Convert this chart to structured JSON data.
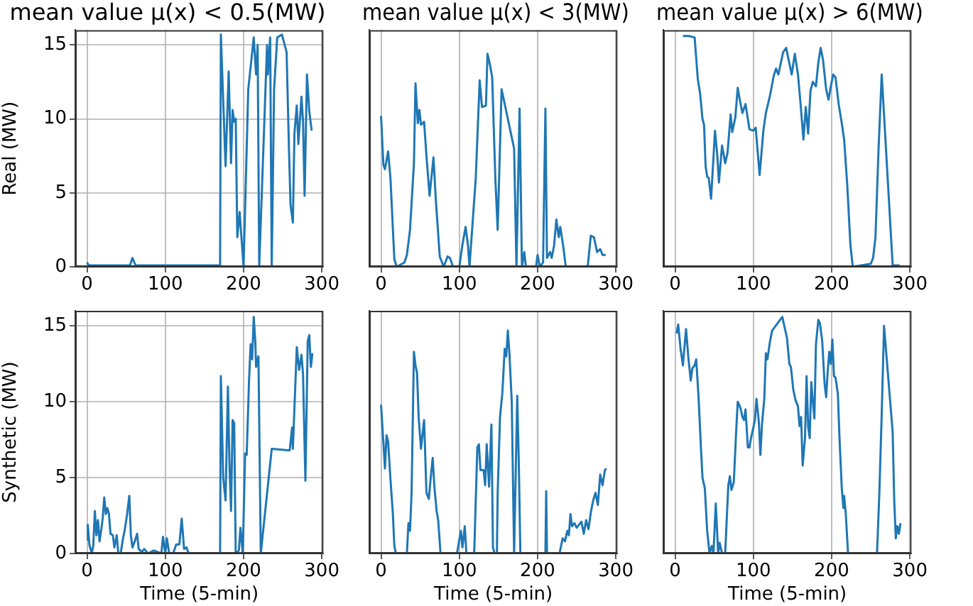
{
  "chart_data": [
    {
      "type": "line",
      "title": "mean value μ(x) < 0.5(MW)",
      "ylabel": "Real (MW)",
      "color": "#1f77b4",
      "xlim": [
        -15,
        302
      ],
      "ylim": [
        0,
        16
      ],
      "xticks": [
        0,
        100,
        200,
        300
      ],
      "yticks": [
        0,
        5,
        10,
        15
      ],
      "grid": true,
      "x": [
        0,
        2,
        20,
        40,
        55,
        58,
        62,
        100,
        165,
        170,
        171,
        177,
        181,
        184,
        186,
        188,
        190,
        192,
        195,
        200,
        206,
        208,
        213,
        216,
        218,
        220,
        223,
        228,
        230,
        231,
        234,
        236,
        239,
        243,
        249,
        255,
        258,
        260,
        263,
        265,
        268,
        270,
        274,
        276,
        278,
        281,
        284,
        287
      ],
      "values": [
        0.3,
        0.1,
        0.1,
        0.1,
        0.1,
        0.6,
        0.1,
        0.1,
        0.1,
        0.1,
        15.7,
        6.8,
        13.2,
        7,
        10.6,
        9.8,
        10,
        2,
        3.7,
        0,
        12,
        null,
        15.5,
        13,
        15,
        0,
        null,
        null,
        15,
        13,
        15.5,
        0,
        12,
        15.5,
        15.7,
        14.5,
        8,
        4.2,
        3,
        9,
        10.9,
        8.3,
        11.5,
        9.8,
        4.8,
        13,
        10.5,
        9.2
      ]
    },
    {
      "type": "line",
      "title": "mean value μ(x) < 3(MW)",
      "color": "#1f77b4",
      "xlim": [
        -15,
        302
      ],
      "ylim": [
        0,
        16
      ],
      "xticks": [
        0,
        100,
        200,
        300
      ],
      "grid": "x",
      "tick_labels": "x",
      "x": [
        0,
        3,
        5,
        9,
        12,
        17,
        20,
        30,
        33,
        37,
        42,
        44,
        47,
        49,
        51,
        55,
        58,
        62,
        67,
        70,
        75,
        80,
        85,
        88,
        92,
        100,
        104,
        108,
        111,
        113,
        121,
        126,
        129,
        134,
        136,
        139,
        142,
        146,
        149,
        154,
        158,
        165,
        170,
        173,
        177,
        180,
        183,
        185,
        198,
        200,
        203,
        207,
        210,
        212,
        216,
        218,
        221,
        224,
        227,
        229,
        233,
        236,
        264,
        268,
        272,
        276,
        280,
        283,
        287
      ],
      "values": [
        10.2,
        6.9,
        6.6,
        7.8,
        6,
        0.5,
        0,
        0.3,
        0.8,
        2.5,
        7,
        12.4,
        9.7,
        10.6,
        9.6,
        9.8,
        7.5,
        4.8,
        7.4,
        4.5,
        0.7,
        0,
        0.7,
        0.6,
        0,
        0,
        1.5,
        2.7,
        1.5,
        0,
        6,
        12.6,
        10.8,
        10.9,
        14.4,
        13.7,
        12.8,
        6,
        2.5,
        12,
        null,
        null,
        8,
        0,
        10.7,
        0,
        1,
        0,
        0,
        0.8,
        0,
        0.3,
        10.7,
        0.6,
        1,
        0.6,
        1.4,
        3.2,
        2,
        2.7,
        1.3,
        0,
        0,
        2.1,
        2,
        1,
        1.2,
        0.8,
        0.8
      ]
    },
    {
      "type": "line",
      "title": "mean value μ(x) > 6(MW)",
      "color": "#1f77b4",
      "xlim": [
        -15,
        302
      ],
      "ylim": [
        0,
        16
      ],
      "xticks": [
        0,
        100,
        200,
        300
      ],
      "grid": "x",
      "tick_labels": "x",
      "x": [
        10,
        13,
        18,
        20,
        25,
        29,
        32,
        35,
        37,
        39,
        41,
        43,
        46,
        51,
        54,
        56,
        60,
        64,
        67,
        71,
        73,
        77,
        80,
        83,
        86,
        90,
        95,
        100,
        103,
        108,
        113,
        116,
        121,
        126,
        129,
        132,
        138,
        142,
        145,
        149,
        153,
        157,
        160,
        164,
        167,
        170,
        173,
        176,
        180,
        183,
        186,
        189,
        193,
        196,
        199,
        202,
        205,
        209,
        213,
        216,
        220,
        224,
        227,
        250,
        253,
        256,
        260,
        264,
        268,
        275,
        278,
        287
      ],
      "values": [
        15.6,
        null,
        15.6,
        null,
        15.5,
        12.7,
        11.7,
        10,
        9.6,
        6.8,
        6.1,
        6,
        4.6,
        9.2,
        7.5,
        5.7,
        8.2,
        7,
        7.7,
        10.3,
        9.1,
        10.1,
        12.1,
        11.2,
        10.4,
        11,
        9.3,
        9.2,
        9.4,
        6.2,
        9.3,
        10.4,
        11.5,
        12.9,
        13.4,
        13,
        14.5,
        14.8,
        14,
        13,
        14.4,
        13,
        11.2,
        8.6,
        10.8,
        9,
        11.9,
        12.5,
        12.2,
        13.8,
        14.8,
        14,
        12,
        11.3,
        12.2,
        13,
        12.8,
        11,
        9.7,
        8.6,
        5.5,
        1.5,
        0,
        0.2,
        0.6,
        2,
        8,
        13,
        null,
        null,
        0.1,
        0.1
      ]
    },
    {
      "type": "line",
      "xlabel": "Time (5-min)",
      "ylabel": "Synthetic (MW)",
      "color": "#1f77b4",
      "xlim": [
        -15,
        302
      ],
      "ylim": [
        0,
        16
      ],
      "xticks": [
        0,
        100,
        200,
        300
      ],
      "yticks": [
        0,
        5,
        10,
        15
      ],
      "grid": true,
      "x": [
        0,
        1,
        3,
        6,
        8,
        10,
        12,
        14,
        16,
        18,
        20,
        22,
        24,
        26,
        28,
        30,
        33,
        35,
        38,
        40,
        43,
        46,
        48,
        51,
        54,
        56,
        58,
        61,
        64,
        66,
        70,
        73,
        78,
        85,
        95,
        97,
        100,
        102,
        105,
        110,
        114,
        118,
        121,
        124,
        127,
        130,
        170,
        171,
        174,
        177,
        180,
        182,
        184,
        186,
        188,
        190,
        194,
        196,
        199,
        202,
        204,
        207,
        209,
        211,
        213,
        215,
        216,
        219,
        220,
        222,
        224,
        233,
        236,
        239,
        256,
        259,
        262,
        263,
        266,
        268,
        271,
        274,
        276,
        279,
        282,
        284,
        286,
        288
      ],
      "values": [
        0.9,
        1.9,
        0.6,
        0,
        0.5,
        2.8,
        1.2,
        2.2,
        0.8,
        1.5,
        2.3,
        3.7,
        2.6,
        3,
        2.6,
        1.3,
        1.2,
        0.4,
        1.2,
        0,
        0,
        1,
        1.5,
        2.5,
        3.8,
        1.2,
        0.4,
        0.8,
        1.3,
        0.3,
        0.1,
        0.3,
        0,
        0.2,
        0,
        1.1,
        0,
        1,
        0,
        0,
        0.6,
        0.6,
        2.3,
        0.3,
        0.4,
        0,
        0,
        11.7,
        5,
        3.5,
        11,
        5.8,
        2.8,
        8.8,
        8.6,
        0,
        0.2,
        1.7,
        0,
        6.6,
        6.5,
        11.4,
        13.8,
        12.8,
        15.6,
        14,
        12.3,
        13,
        null,
        0,
        null,
        null,
        6.9,
        null,
        null,
        6.8,
        8.3,
        6.9,
        null,
        13.6,
        12.1,
        13.1,
        11.8,
        4.8,
        14,
        14.4,
        12.3,
        13.2
      ]
    },
    {
      "type": "line",
      "xlabel": "Time (5-min)",
      "color": "#1f77b4",
      "xlim": [
        -15,
        302
      ],
      "ylim": [
        0,
        16
      ],
      "xticks": [
        0,
        100,
        200,
        300
      ],
      "grid": "x",
      "tick_labels": "x",
      "x": [
        0,
        3,
        5,
        7,
        9,
        12,
        15,
        17,
        19,
        33,
        35,
        37,
        39,
        42,
        44,
        46,
        48,
        51,
        55,
        58,
        61,
        64,
        66,
        68,
        71,
        73,
        76,
        97,
        99,
        102,
        104,
        107,
        109,
        119,
        123,
        125,
        127,
        131,
        133,
        135,
        138,
        141,
        143,
        145,
        148,
        149,
        152,
        155,
        158,
        160,
        162,
        164,
        167,
        170,
        174,
        176,
        178,
        210,
        211,
        212,
        228,
        230,
        232,
        235,
        238,
        240,
        242,
        244,
        247,
        250,
        253,
        256,
        259,
        262,
        265,
        268,
        271,
        274,
        277,
        280,
        283,
        286,
        288
      ],
      "values": [
        9.8,
        7.3,
        5.6,
        7.8,
        7.4,
        4.9,
        2.7,
        0.5,
        0,
        0,
        2,
        1.5,
        4,
        13.3,
        12.4,
        11.9,
        9,
        6.9,
        8.8,
        4,
        3.6,
        5.3,
        6.3,
        4.5,
        2.8,
        2.2,
        0,
        0,
        0.6,
        1.5,
        0.4,
        1.8,
        0,
        0,
        7,
        7.2,
        5.5,
        5.5,
        4.5,
        7.2,
        4.4,
        8.5,
        0.4,
        0,
        0,
        4,
        9,
        10.6,
        13.5,
        13,
        14.7,
        13.2,
        10,
        0,
        10.4,
        6,
        0,
        0,
        4.1,
        0,
        0,
        0.5,
        1,
        0.8,
        1.5,
        1.2,
        2.6,
        1.8,
        2,
        1.7,
        1.9,
        2.1,
        1.3,
        2.2,
        1.6,
        2.7,
        3.5,
        4,
        3.2,
        5.2,
        4.5,
        5.5,
        5.6
      ]
    },
    {
      "type": "line",
      "xlabel": "Time (5-min)",
      "color": "#1f77b4",
      "xlim": [
        -15,
        302
      ],
      "ylim": [
        0,
        16
      ],
      "xticks": [
        0,
        100,
        200,
        300
      ],
      "grid": "x",
      "tick_labels": "x",
      "x": [
        2,
        4,
        7,
        10,
        14,
        17,
        20,
        22,
        25,
        27,
        30,
        33,
        35,
        38,
        41,
        44,
        47,
        49,
        52,
        55,
        57,
        60,
        64,
        68,
        70,
        72,
        75,
        78,
        80,
        82,
        84,
        86,
        88,
        90,
        93,
        95,
        97,
        100,
        102,
        104,
        107,
        109,
        111,
        114,
        116,
        118,
        121,
        124,
        128,
        135,
        137,
        139,
        143,
        146,
        148,
        151,
        154,
        157,
        159,
        161,
        163,
        166,
        168,
        170,
        172,
        174,
        176,
        178,
        180,
        183,
        185,
        188,
        191,
        193,
        195,
        197,
        199,
        201,
        203,
        205,
        208,
        210,
        213,
        215,
        216,
        218,
        221,
        258,
        261,
        264,
        267,
        269,
        276,
        278,
        280,
        282,
        284,
        286,
        288
      ],
      "values": [
        14.5,
        15.1,
        13.5,
        12.4,
        14.8,
        12.9,
        11.4,
        12.2,
        12.4,
        12.8,
        10.3,
        7,
        5,
        4.3,
        1.5,
        0,
        0.5,
        0,
        3.3,
        0,
        0.7,
        0,
        0,
        4.5,
        5.1,
        4.2,
        4.7,
        8,
        10,
        9.8,
        9.5,
        9,
        8.8,
        9.5,
        7,
        7,
        7.6,
        8.3,
        8.8,
        10.2,
        8.7,
        6.5,
        8.5,
        10.2,
        13.2,
        12.8,
        13.9,
        14.7,
        null,
        null,
        15.6,
        null,
        14.2,
        12.5,
        12.3,
        10.8,
        10.1,
        9.7,
        8.4,
        9,
        5.8,
        7.6,
        11.7,
        8.4,
        7.6,
        11.3,
        10,
        8.9,
        13.8,
        15.4,
        15.2,
        14,
        11.2,
        10.3,
        12,
        13.3,
        12.5,
        14.1,
        11.7,
        11.6,
        10.5,
        7.7,
        4.3,
        3,
        3.8,
        2.7,
        0,
        0,
        4,
        9.2,
        15,
        null,
        null,
        8,
        3.5,
        1,
        1.8,
        1.3,
        2
      ]
    }
  ]
}
